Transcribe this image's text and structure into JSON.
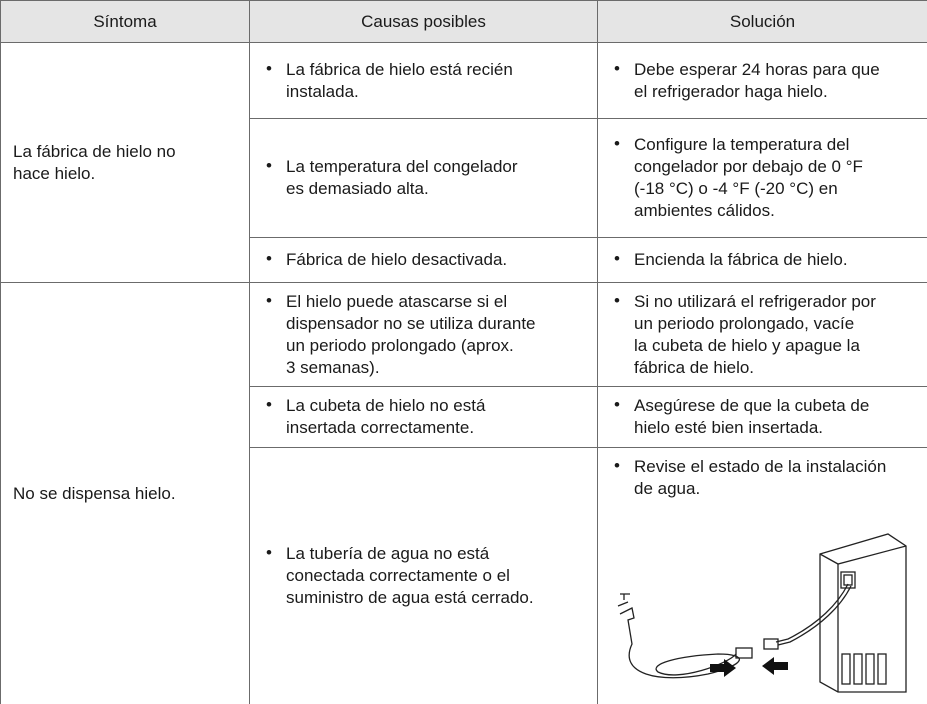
{
  "table": {
    "header": [
      "Síntoma",
      "Causas posibles",
      "Solución"
    ],
    "groups": [
      {
        "symptom": [
          "La fábrica de hielo no",
          "hace hielo."
        ],
        "rows": [
          {
            "cause": [
              "La fábrica de hielo está recién",
              "instalada."
            ],
            "solution": [
              "Debe esperar 24 horas para que",
              "el refrigerador haga hielo."
            ]
          },
          {
            "cause": [
              "La temperatura del congelador",
              "es demasiado alta."
            ],
            "solution": [
              "Configure la temperatura del",
              "congelador por debajo de 0 °F",
              "(-18 °C) o -4 °F (-20 °C) en",
              "ambientes cálidos."
            ]
          },
          {
            "cause": [
              "Fábrica de hielo desactivada."
            ],
            "solution": [
              "Encienda la fábrica de hielo."
            ]
          }
        ]
      },
      {
        "symptom": [
          "No se dispensa hielo."
        ],
        "rows": [
          {
            "cause": [
              "El hielo puede atascarse si el",
              "dispensador no se utiliza durante",
              "un periodo prolongado (aprox.",
              "3 semanas)."
            ],
            "solution": [
              "Si no utilizará el refrigerador por",
              "un periodo prolongado, vacíe",
              "la cubeta de hielo y apague la",
              "fábrica de hielo."
            ]
          },
          {
            "cause": [
              "La cubeta de hielo no está",
              "insertada correctamente."
            ],
            "solution": [
              "Asegúrese de que la cubeta de",
              "hielo esté bien insertada."
            ]
          },
          {
            "cause": [
              "La tubería de agua no está",
              "conectada correctamente o el",
              "suministro de agua está cerrado."
            ],
            "solution": [
              "Revise el estado de la instalación",
              "de agua."
            ]
          }
        ]
      }
    ]
  }
}
